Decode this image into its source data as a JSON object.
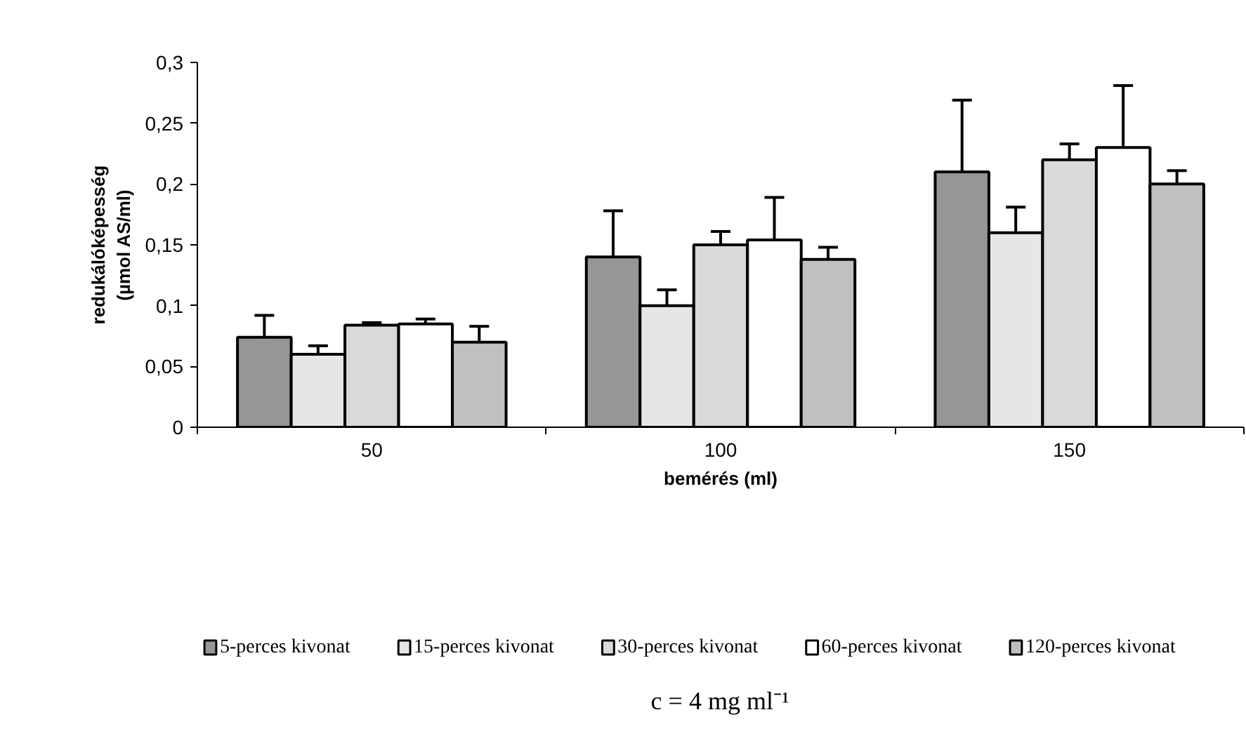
{
  "chart_data": {
    "type": "bar",
    "xlabel": "bemérés (ml)",
    "ylabel": "redukálóképesség\n(µmol AS/ml)",
    "categories": [
      "50",
      "100",
      "150"
    ],
    "series": [
      {
        "name": "5-perces kivonat",
        "color": "#969696",
        "values": [
          0.074,
          0.14,
          0.21
        ],
        "errors": [
          [
            0.074,
            0.092
          ],
          [
            0.14,
            0.178
          ],
          [
            0.21,
            0.269
          ]
        ]
      },
      {
        "name": "15-perces kivonat",
        "color": "#e6e6e6",
        "values": [
          0.06,
          0.1,
          0.16
        ],
        "errors": [
          [
            0.06,
            0.067
          ],
          [
            0.1,
            0.113
          ],
          [
            0.16,
            0.181
          ]
        ]
      },
      {
        "name": "30-perces kivonat",
        "color": "#d9d9d9",
        "values": [
          0.084,
          0.15,
          0.22
        ],
        "errors": [
          [
            0.084,
            0.086
          ],
          [
            0.15,
            0.161
          ],
          [
            0.22,
            0.233
          ]
        ]
      },
      {
        "name": "60-perces kivonat",
        "color": "#ffffff",
        "values": [
          0.085,
          0.154,
          0.23
        ],
        "errors": [
          [
            0.085,
            0.089
          ],
          [
            0.154,
            0.189
          ],
          [
            0.23,
            0.281
          ]
        ]
      },
      {
        "name": "120-perces kivonat",
        "color": "#c0c0c0",
        "values": [
          0.07,
          0.138,
          0.2
        ],
        "errors": [
          [
            0.07,
            0.083
          ],
          [
            0.138,
            0.148
          ],
          [
            0.2,
            0.211
          ]
        ]
      }
    ],
    "ylim": [
      0,
      0.3
    ],
    "yticks": [
      0,
      {
        "value": 0.05,
        "label": "0,05"
      },
      {
        "value": 0.1,
        "label": "0,1"
      },
      {
        "value": 0.15,
        "label": "0,15"
      },
      {
        "value": 0.2,
        "label": "0,2"
      },
      {
        "value": 0.25,
        "label": "0,25"
      },
      {
        "value": 0.3,
        "label": "0,3"
      }
    ],
    "grid": false,
    "legend": "bottom",
    "annotations": [
      "c = 4 mg ml⁻¹"
    ]
  }
}
